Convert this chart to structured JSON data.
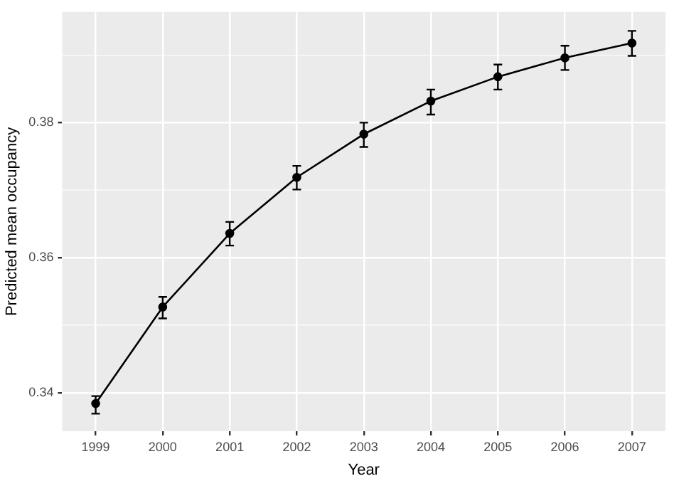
{
  "chart_data": {
    "type": "line",
    "xlabel": "Year",
    "ylabel": "Predicted mean occupancy",
    "categories": [
      "1999",
      "2000",
      "2001",
      "2002",
      "2003",
      "2004",
      "2005",
      "2006",
      "2007"
    ],
    "series": [
      {
        "color": "#000000",
        "values": [
          0.3384,
          0.3527,
          0.3636,
          0.3719,
          0.3783,
          0.3832,
          0.3868,
          0.3896,
          0.3918
        ],
        "errors": [
          [
            0.3369,
            0.3395
          ],
          [
            0.351,
            0.3542
          ],
          [
            0.3618,
            0.3653
          ],
          [
            0.3701,
            0.3736
          ],
          [
            0.3764,
            0.38
          ],
          [
            0.3812,
            0.3849
          ],
          [
            0.3849,
            0.3886
          ],
          [
            0.3878,
            0.3914
          ],
          [
            0.3899,
            0.3936
          ]
        ]
      }
    ],
    "ylim": [
      0.3343,
      0.3964
    ],
    "yticks": [
      {
        "value": 0.34,
        "label": "0.34"
      },
      {
        "value": 0.35,
        "label": null
      },
      {
        "value": 0.36,
        "label": "0.36"
      },
      {
        "value": 0.37,
        "label": null
      },
      {
        "value": 0.38,
        "label": "0.38"
      },
      {
        "value": 0.39,
        "label": null
      }
    ],
    "grid": true,
    "legend": false,
    "marker": "circle",
    "line_style": "solid"
  }
}
